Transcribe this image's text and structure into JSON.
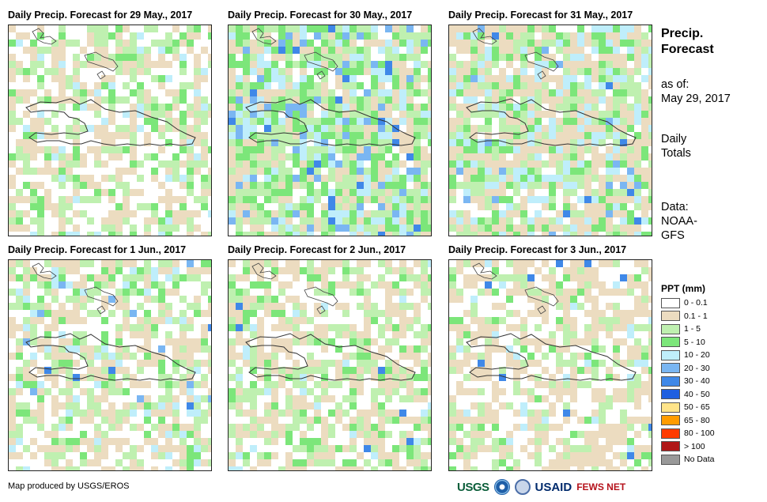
{
  "panels": [
    {
      "title": "Daily Precip. Forecast for 29 May., 2017"
    },
    {
      "title": "Daily Precip. Forecast for 30 May., 2017"
    },
    {
      "title": "Daily Precip. Forecast for 31 May., 2017"
    },
    {
      "title": "Daily Precip. Forecast for 1 Jun., 2017"
    },
    {
      "title": "Daily Precip. Forecast for 2 Jun., 2017"
    },
    {
      "title": "Daily Precip. Forecast for 3 Jun., 2017"
    }
  ],
  "side": {
    "title_line1": "Precip.",
    "title_line2": "Forecast",
    "asof_line1": "as of:",
    "asof_line2": "May 29, 2017",
    "totals_line1": "Daily",
    "totals_line2": "Totals",
    "data_line1": "Data:",
    "data_line2": "NOAA-",
    "data_line3": "GFS"
  },
  "legend": {
    "title": "PPT (mm)",
    "items": [
      {
        "label": "0 - 0.1",
        "color": "#ffffff"
      },
      {
        "label": "0.1 - 1",
        "color": "#ecdcc0"
      },
      {
        "label": "1 - 5",
        "color": "#bff0b0"
      },
      {
        "label": "5 - 10",
        "color": "#7ce67a"
      },
      {
        "label": "10 - 20",
        "color": "#bfeefb"
      },
      {
        "label": "20 - 30",
        "color": "#7ab6f2"
      },
      {
        "label": "30 - 40",
        "color": "#3f88e8"
      },
      {
        "label": "40 - 50",
        "color": "#1f5fe0"
      },
      {
        "label": "50 - 65",
        "color": "#ffe48a"
      },
      {
        "label": "65 - 80",
        "color": "#ff9c00"
      },
      {
        "label": "80 - 100",
        "color": "#ff3b00"
      },
      {
        "label": "> 100",
        "color": "#b01818"
      },
      {
        "label": "No Data",
        "color": "#999999"
      }
    ]
  },
  "credit": "Map produced by USGS/EROS",
  "logos": {
    "usgs": "USGS",
    "usaid": "USAID",
    "fews": "FEWS NET"
  }
}
